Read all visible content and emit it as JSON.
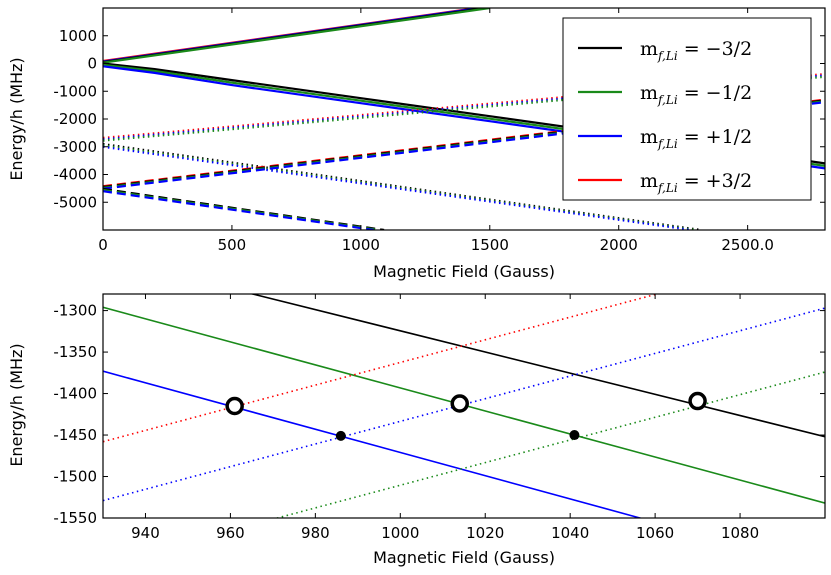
{
  "chart_data": [
    {
      "type": "line",
      "xlabel": "Magnetic Field (Gauss)",
      "ylabel": "Energy/h (MHz)",
      "xlim": [
        0,
        2800
      ],
      "ylim": [
        -6000,
        2000
      ],
      "xticks": [
        0,
        500,
        1000,
        1500,
        2000,
        2500
      ],
      "xtick_labels": [
        "0",
        "500",
        "1000",
        "1500",
        "2000",
        "2500.0"
      ],
      "yticks": [
        1000,
        0,
        -1000,
        -2000,
        -3000,
        -4000,
        -5000
      ],
      "ytick_labels": [
        "1000",
        "0",
        "-1000",
        "-2000",
        "-3000",
        "-4000",
        "-5000"
      ],
      "legend": {
        "position": "top-right",
        "entries": [
          {
            "label_main": "m",
            "label_sub": "f,Li",
            "label_value": " = −3/2",
            "color": "#000000"
          },
          {
            "label_main": "m",
            "label_sub": "f,Li",
            "label_value": " = −1/2",
            "color": "#1a8a1a"
          },
          {
            "label_main": "m",
            "label_sub": "f,Li",
            "label_value": " = +1/2",
            "color": "#0000ff"
          },
          {
            "label_main": "m",
            "label_sub": "f,Li",
            "label_value": " = +3/2",
            "color": "#ff0000"
          }
        ]
      },
      "series": [
        {
          "group": "solid-up",
          "style": "solid",
          "color": "#ff0000",
          "x": [
            0,
            1450
          ],
          "y": [
            90,
            2000
          ]
        },
        {
          "group": "solid-up",
          "style": "solid",
          "color": "#0000ff",
          "x": [
            0,
            1460
          ],
          "y": [
            70,
            2000
          ]
        },
        {
          "group": "solid-up",
          "style": "solid",
          "color": "#000000",
          "x": [
            0,
            1480
          ],
          "y": [
            50,
            2000
          ]
        },
        {
          "group": "solid-up",
          "style": "solid",
          "color": "#1a8a1a",
          "x": [
            0,
            1500
          ],
          "y": [
            30,
            2000
          ]
        },
        {
          "group": "solid-down",
          "style": "solid",
          "color": "#000000",
          "x": [
            0,
            200,
            500,
            1000,
            1500,
            2000,
            2500,
            2800
          ],
          "y": [
            0,
            -200,
            -600,
            -1250,
            -1900,
            -2550,
            -3200,
            -3600
          ]
        },
        {
          "group": "solid-down",
          "style": "solid",
          "color": "#1a8a1a",
          "x": [
            0,
            200,
            500,
            1000,
            1500,
            2000,
            2500,
            2800
          ],
          "y": [
            -50,
            -270,
            -690,
            -1340,
            -1990,
            -2640,
            -3290,
            -3690
          ]
        },
        {
          "group": "solid-down",
          "style": "solid",
          "color": "#0000ff",
          "x": [
            0,
            200,
            500,
            1000,
            1500,
            2000,
            2500,
            2800
          ],
          "y": [
            -100,
            -340,
            -780,
            -1430,
            -2080,
            -2730,
            -3380,
            -3780
          ]
        },
        {
          "group": "dotted-up",
          "style": "dotted",
          "color": "#ff0000",
          "x": [
            0,
            2800
          ],
          "y": [
            -2680,
            -380
          ]
        },
        {
          "group": "dotted-up",
          "style": "dotted",
          "color": "#0000ff",
          "x": [
            0,
            2800
          ],
          "y": [
            -2730,
            -430
          ]
        },
        {
          "group": "dotted-up",
          "style": "dotted",
          "color": "#1a8a1a",
          "x": [
            0,
            2800
          ],
          "y": [
            -2780,
            -480
          ]
        },
        {
          "group": "dotted-down",
          "style": "dotted",
          "color": "#000000",
          "x": [
            0,
            2320
          ],
          "y": [
            -2900,
            -6000
          ]
        },
        {
          "group": "dotted-down",
          "style": "dotted",
          "color": "#1a8a1a",
          "x": [
            0,
            2300
          ],
          "y": [
            -2950,
            -6000
          ]
        },
        {
          "group": "dotted-down",
          "style": "dotted",
          "color": "#0000ff",
          "x": [
            0,
            2280
          ],
          "y": [
            -3000,
            -6000
          ]
        },
        {
          "group": "dashed-up",
          "style": "dashed",
          "color": "#ff0000",
          "x": [
            0,
            2800
          ],
          "y": [
            -4420,
            -1300
          ]
        },
        {
          "group": "dashed-up",
          "style": "dashed",
          "color": "#000000",
          "x": [
            0,
            2800
          ],
          "y": [
            -4450,
            -1330
          ]
        },
        {
          "group": "dashed-up",
          "style": "dashed",
          "color": "#1a8a1a",
          "x": [
            0,
            2800
          ],
          "y": [
            -4480,
            -1360
          ]
        },
        {
          "group": "dashed-up",
          "style": "dashed",
          "color": "#0000ff",
          "x": [
            0,
            2800
          ],
          "y": [
            -4510,
            -1390
          ]
        },
        {
          "group": "dashed-down",
          "style": "dashed",
          "color": "#000000",
          "x": [
            0,
            1090
          ],
          "y": [
            -4520,
            -6000
          ]
        },
        {
          "group": "dashed-down",
          "style": "dashed",
          "color": "#1a8a1a",
          "x": [
            0,
            1070
          ],
          "y": [
            -4560,
            -6000
          ]
        },
        {
          "group": "dashed-down",
          "style": "dashed",
          "color": "#0000ff",
          "x": [
            0,
            1050
          ],
          "y": [
            -4600,
            -6000
          ]
        }
      ]
    },
    {
      "type": "line",
      "xlabel": "Magnetic Field (Gauss)",
      "ylabel": "Energy/h (MHz)",
      "xlim": [
        930,
        1100
      ],
      "ylim": [
        -1550,
        -1280
      ],
      "xticks": [
        940,
        960,
        980,
        1000,
        1020,
        1040,
        1060,
        1080
      ],
      "xtick_labels": [
        "940",
        "960",
        "980",
        "1000",
        "1020",
        "1040",
        "1060",
        "1080"
      ],
      "yticks": [
        -1300,
        -1350,
        -1400,
        -1450,
        -1500,
        -1550
      ],
      "ytick_labels": [
        "-1300",
        "-1350",
        "-1400",
        "-1450",
        "-1500",
        "-1550"
      ],
      "series": [
        {
          "name": "m = −3/2 (solid)",
          "style": "solid",
          "color": "#000000",
          "x": [
            930,
            1100
          ],
          "y": [
            -1235,
            -1452
          ]
        },
        {
          "name": "m = −1/2 (solid)",
          "style": "solid",
          "color": "#1a8a1a",
          "x": [
            930,
            1100
          ],
          "y": [
            -1296,
            -1532
          ]
        },
        {
          "name": "m = +1/2 (solid)",
          "style": "solid",
          "color": "#0000ff",
          "x": [
            930,
            1100
          ],
          "y": [
            -1373,
            -1611
          ]
        },
        {
          "name": "m = +3/2 (dotted)",
          "style": "dotted",
          "color": "#ff0000",
          "x": [
            930,
            1100
          ],
          "y": [
            -1458,
            -1226
          ]
        },
        {
          "name": "m = +1/2 (dotted)",
          "style": "dotted",
          "color": "#0000ff",
          "x": [
            930,
            1100
          ],
          "y": [
            -1529,
            -1297
          ]
        },
        {
          "name": "m = −1/2 (dotted)",
          "style": "dotted",
          "color": "#1a8a1a",
          "x": [
            930,
            1100
          ],
          "y": [
            -1606,
            -1374
          ]
        }
      ],
      "markers": [
        {
          "kind": "open-circle",
          "x": 961,
          "y": -1415
        },
        {
          "kind": "open-circle",
          "x": 1014,
          "y": -1412
        },
        {
          "kind": "open-circle",
          "x": 1070,
          "y": -1409
        },
        {
          "kind": "filled-dot",
          "x": 986,
          "y": -1451
        },
        {
          "kind": "filled-dot",
          "x": 1041,
          "y": -1450
        }
      ]
    }
  ]
}
